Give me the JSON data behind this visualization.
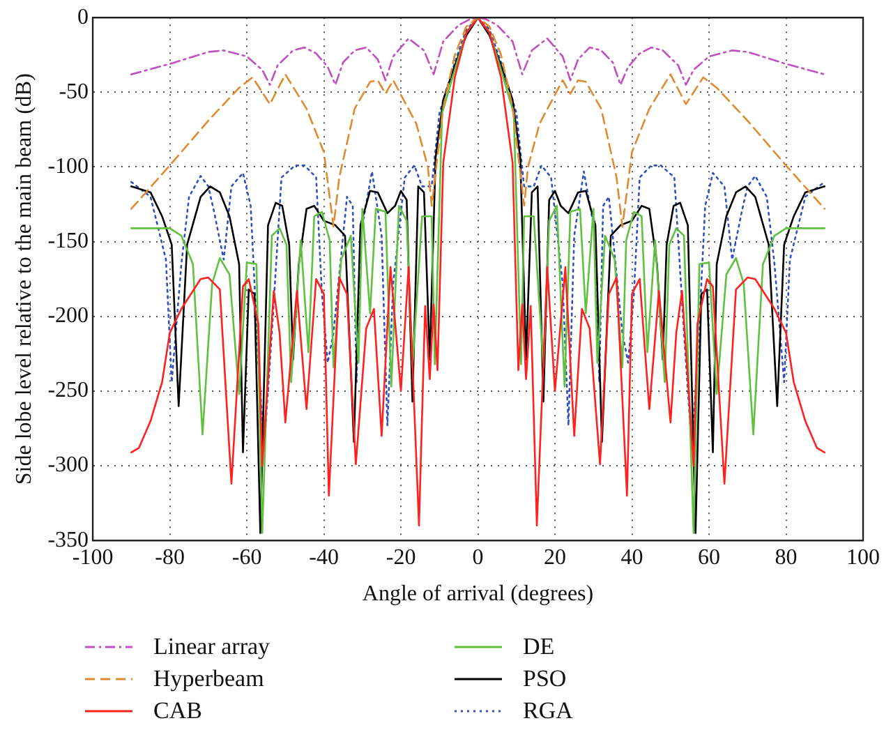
{
  "chart_data": {
    "type": "line",
    "xlabel": "Angle of arrival (degrees)",
    "ylabel": "Side lobe level relative to the main beam (dB)",
    "xlim": [
      -100,
      100
    ],
    "xticks": [
      -100,
      -80,
      -60,
      -40,
      -20,
      0,
      20,
      40,
      60,
      80,
      100
    ],
    "ylim": [
      -350,
      0
    ],
    "yticks": [
      -350,
      -300,
      -250,
      -200,
      -150,
      -100,
      -50,
      0
    ],
    "grid": true,
    "legend": "bottom",
    "marker": "none",
    "series": [
      {
        "name": "Linear array",
        "color": "#c050c0",
        "line_style": "dashdot",
        "x": [
          -90,
          -80,
          -70,
          -66,
          -60,
          -56,
          -54,
          -52,
          -48,
          -45,
          -42,
          -39,
          -37,
          -35,
          -32,
          -29,
          -26,
          -24,
          -22,
          -18,
          -14,
          -11.5,
          -9,
          -5,
          -2,
          0,
          2,
          5,
          9,
          11.5,
          14,
          18,
          22,
          24,
          26,
          29,
          32,
          35,
          37,
          39,
          42,
          45,
          48,
          52,
          54,
          56,
          60,
          66,
          70,
          80,
          90
        ],
        "values": [
          -38,
          -31,
          -23,
          -22,
          -26,
          -35,
          -45,
          -32,
          -22,
          -20,
          -24,
          -33,
          -45,
          -30,
          -22,
          -20,
          -28,
          -42,
          -26,
          -14,
          -22,
          -38,
          -16,
          -5,
          -1,
          0,
          -1,
          -5,
          -16,
          -38,
          -22,
          -14,
          -26,
          -42,
          -28,
          -20,
          -22,
          -30,
          -45,
          -33,
          -24,
          -20,
          -22,
          -32,
          -45,
          -35,
          -26,
          -22,
          -23,
          -31,
          -38
        ]
      },
      {
        "name": "Hyperbeam",
        "color": "#e08a30",
        "line_style": "dashed",
        "x": [
          -90,
          -80,
          -70,
          -62,
          -58.5,
          -54,
          -50,
          -44.5,
          -40,
          -37.5,
          -36,
          -32,
          -28,
          -26,
          -24,
          -22,
          -16,
          -13,
          -12,
          -9,
          -6,
          -3,
          0,
          3,
          6,
          9,
          12,
          13,
          16,
          22,
          24,
          26,
          28,
          32,
          36,
          37.5,
          40,
          44.5,
          50,
          54,
          58.5,
          62,
          70,
          80,
          90
        ],
        "values": [
          -128,
          -99,
          -69,
          -47,
          -40,
          -58,
          -38,
          -61,
          -90,
          -140,
          -107,
          -61,
          -43,
          -42,
          -51,
          -42,
          -71,
          -100,
          -126,
          -60,
          -25,
          -6,
          0,
          -6,
          -25,
          -60,
          -126,
          -100,
          -71,
          -42,
          -51,
          -42,
          -43,
          -61,
          -107,
          -140,
          -90,
          -61,
          -38,
          -58,
          -40,
          -47,
          -69,
          -99,
          -128
        ]
      },
      {
        "name": "CAB",
        "color": "#ff2020",
        "line_style": "solid",
        "x": [
          -90,
          -88,
          -85,
          -82,
          -80,
          -77,
          -72,
          -70,
          -67,
          -64,
          -61,
          -59.5,
          -57,
          -56,
          -53,
          -51.5,
          -50,
          -47,
          -44.5,
          -42,
          -40,
          -38.7,
          -36,
          -34,
          -31.7,
          -29,
          -27,
          -25,
          -22.7,
          -20,
          -18,
          -15.3,
          -13.7,
          -12.5,
          -11.5,
          -10.5,
          -9,
          -6,
          -3,
          0,
          3,
          6,
          9,
          10.5,
          11.5,
          12.5,
          13.7,
          15.3,
          18,
          20,
          22.7,
          25,
          27,
          29,
          31.7,
          34,
          36,
          38.7,
          40,
          42,
          44.5,
          47,
          50,
          51.5,
          53,
          56,
          57,
          59.5,
          61,
          64,
          67,
          70,
          72,
          77,
          80,
          82,
          85,
          88,
          90
        ],
        "values": [
          -291,
          -288,
          -270,
          -244,
          -211,
          -195,
          -175,
          -174,
          -182,
          -312,
          -180,
          -175,
          -205,
          -300,
          -183,
          -211,
          -271,
          -183,
          -262,
          -175,
          -185,
          -320,
          -174,
          -185,
          -299,
          -208,
          -195,
          -280,
          -167,
          -250,
          -167,
          -340,
          -193,
          -242,
          -192,
          -236,
          -97,
          -40,
          -10,
          0,
          -10,
          -40,
          -97,
          -236,
          -192,
          -242,
          -193,
          -340,
          -167,
          -250,
          -167,
          -280,
          -195,
          -208,
          -299,
          -185,
          -174,
          -320,
          -185,
          -175,
          -262,
          -183,
          -271,
          -211,
          -183,
          -300,
          -205,
          -175,
          -180,
          -312,
          -182,
          -174,
          -175,
          -195,
          -211,
          -244,
          -270,
          -288,
          -291
        ]
      },
      {
        "name": "DE",
        "color": "#60c040",
        "line_style": "solid",
        "x": [
          -90,
          -80,
          -77,
          -74,
          -71.5,
          -69,
          -67,
          -64.5,
          -62,
          -60,
          -57.5,
          -56,
          -53.5,
          -51.5,
          -49.7,
          -48.5,
          -46,
          -44,
          -42.5,
          -40.5,
          -38.5,
          -37.5,
          -35.5,
          -33,
          -31,
          -30,
          -28,
          -26.5,
          -24,
          -22.5,
          -20.5,
          -18.5,
          -17,
          -14.5,
          -12,
          -11.2,
          -9.3,
          -6,
          -3,
          0,
          3,
          6,
          9.3,
          11.2,
          12,
          14.5,
          17,
          18.5,
          20.5,
          22.5,
          24,
          26.5,
          28,
          30,
          31,
          33,
          35.5,
          37.5,
          38.5,
          40.5,
          42.5,
          44,
          46,
          48.5,
          49.7,
          51.5,
          53.5,
          56,
          57.5,
          60,
          62,
          64.5,
          67,
          69,
          71.5,
          74,
          77,
          80,
          90
        ],
        "values": [
          -141,
          -141,
          -146,
          -165,
          -279,
          -178,
          -161,
          -172,
          -252,
          -164,
          -165,
          -345,
          -146,
          -141,
          -152,
          -244,
          -149,
          -224,
          -133,
          -130,
          -149,
          -234,
          -162,
          -146,
          -231,
          -128,
          -198,
          -128,
          -130,
          -247,
          -126,
          -136,
          -234,
          -133,
          -133,
          -232,
          -64,
          -35,
          -10,
          0,
          -10,
          -35,
          -64,
          -232,
          -133,
          -133,
          -234,
          -136,
          -126,
          -247,
          -130,
          -128,
          -198,
          -128,
          -231,
          -146,
          -162,
          -234,
          -149,
          -130,
          -133,
          -224,
          -149,
          -244,
          -152,
          -141,
          -146,
          -345,
          -165,
          -164,
          -252,
          -172,
          -161,
          -178,
          -279,
          -165,
          -146,
          -141,
          -141
        ]
      },
      {
        "name": "PSO",
        "color": "#000000",
        "line_style": "solid",
        "x": [
          -90,
          -85,
          -82,
          -79.5,
          -77.7,
          -75.5,
          -72,
          -69.5,
          -67,
          -64.5,
          -62,
          -61,
          -59.5,
          -58,
          -56.5,
          -54.5,
          -52.5,
          -50.8,
          -49,
          -48,
          -46.5,
          -44.5,
          -42.5,
          -40,
          -37,
          -34.5,
          -32.2,
          -30.5,
          -28,
          -26,
          -23.5,
          -21.5,
          -20,
          -18.5,
          -17,
          -15.5,
          -14,
          -12.5,
          -11,
          -9,
          -6,
          -3,
          0,
          3,
          6,
          9,
          11,
          12.5,
          14,
          15.5,
          17,
          18.5,
          20,
          21.5,
          23.5,
          26,
          28,
          30.5,
          32.2,
          34.5,
          37,
          40,
          42.5,
          44.5,
          46.5,
          48,
          49,
          50.8,
          52.5,
          54.5,
          56.5,
          58,
          59.5,
          61,
          62,
          64.5,
          67,
          69.5,
          72,
          75.5,
          77.7,
          79.5,
          82,
          85,
          90
        ],
        "values": [
          -113,
          -117,
          -133,
          -152,
          -260,
          -152,
          -120,
          -113,
          -117,
          -133,
          -165,
          -291,
          -182,
          -185,
          -345,
          -139,
          -124,
          -126,
          -152,
          -229,
          -165,
          -128,
          -126,
          -136,
          -139,
          -146,
          -284,
          -139,
          -116,
          -117,
          -131,
          -126,
          -116,
          -122,
          -257,
          -113,
          -117,
          -229,
          -94,
          -55,
          -32,
          -12,
          0,
          -12,
          -32,
          -55,
          -94,
          -229,
          -117,
          -113,
          -257,
          -122,
          -116,
          -126,
          -131,
          -117,
          -116,
          -139,
          -284,
          -146,
          -139,
          -136,
          -126,
          -128,
          -165,
          -229,
          -152,
          -126,
          -124,
          -139,
          -345,
          -185,
          -182,
          -291,
          -165,
          -133,
          -117,
          -113,
          -120,
          -152,
          -260,
          -152,
          -133,
          -117,
          -113
        ]
      },
      {
        "name": "RGA",
        "color": "#3050c0",
        "line_style": "dotted",
        "x": [
          -90,
          -85,
          -81,
          -79.5,
          -77,
          -75,
          -72,
          -70,
          -68.5,
          -66,
          -64,
          -61,
          -59,
          -57,
          -55.5,
          -53.5,
          -51,
          -47.5,
          -45,
          -42,
          -40.5,
          -39,
          -37.5,
          -34,
          -32.5,
          -31.5,
          -30.5,
          -27.5,
          -25,
          -23.5,
          -22,
          -19,
          -16.5,
          -14.5,
          -12,
          -10,
          -6,
          -3,
          0,
          3,
          6,
          10,
          12,
          14.5,
          16.5,
          19,
          22,
          23.5,
          25,
          27.5,
          30.5,
          31.5,
          32.5,
          34,
          37.5,
          39,
          40.5,
          42,
          45,
          47.5,
          51,
          53.5,
          55.5,
          57,
          59,
          61,
          64,
          66,
          68.5,
          70,
          72,
          75,
          77,
          79.5,
          81,
          85,
          90
        ],
        "values": [
          -110,
          -120,
          -162,
          -244,
          -165,
          -120,
          -106,
          -113,
          -130,
          -162,
          -113,
          -104,
          -126,
          -231,
          -288,
          -211,
          -107,
          -99,
          -99,
          -107,
          -185,
          -231,
          -211,
          -120,
          -126,
          -244,
          -146,
          -103,
          -146,
          -273,
          -178,
          -107,
          -99,
          -113,
          -113,
          -64,
          -30,
          -8,
          0,
          -8,
          -30,
          -64,
          -113,
          -113,
          -99,
          -107,
          -178,
          -273,
          -146,
          -103,
          -146,
          -244,
          -126,
          -120,
          -211,
          -231,
          -185,
          -107,
          -99,
          -99,
          -107,
          -211,
          -288,
          -231,
          -126,
          -104,
          -113,
          -162,
          -130,
          -113,
          -106,
          -120,
          -165,
          -244,
          -162,
          -120,
          -110
        ]
      }
    ]
  }
}
